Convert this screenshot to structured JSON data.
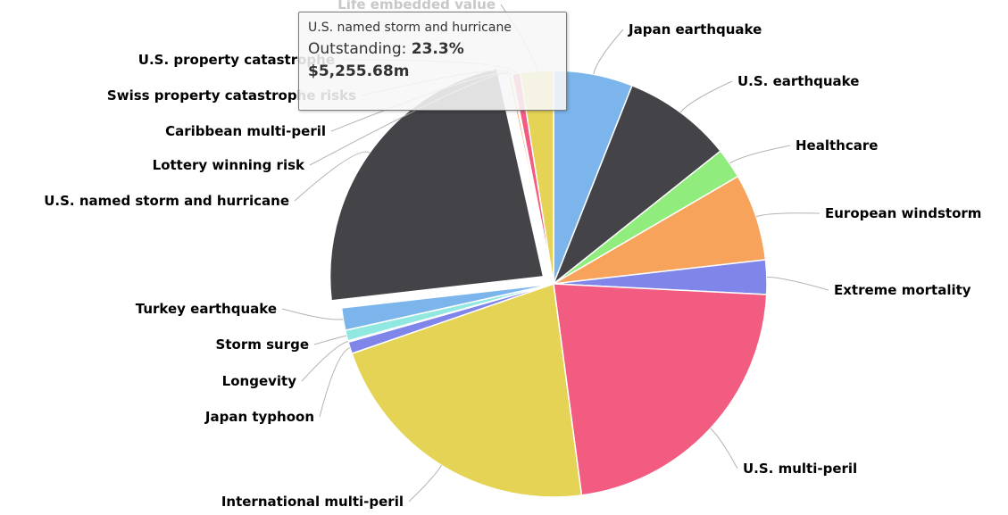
{
  "chart_data": {
    "type": "pie",
    "title": "",
    "slices": [
      {
        "name": "Japan earthquake",
        "value": 6.0,
        "color": "#7cb5ec"
      },
      {
        "name": "U.S. earthquake",
        "value": 8.3,
        "color": "#434348"
      },
      {
        "name": "Healthcare",
        "value": 2.3,
        "color": "#90ed7d"
      },
      {
        "name": "European windstorm",
        "value": 6.6,
        "color": "#f7a35c"
      },
      {
        "name": "Extreme mortality",
        "value": 2.6,
        "color": "#8085e9"
      },
      {
        "name": "U.S. multi-peril",
        "value": 22.1,
        "color": "#f15c80"
      },
      {
        "name": "International multi-peril",
        "value": 21.8,
        "color": "#e4d354"
      },
      {
        "name": "Japan typhoon",
        "value": 0.9,
        "color": "#8085e9"
      },
      {
        "name": "Longevity",
        "value": 0.1,
        "color": "#f7a35c"
      },
      {
        "name": "Storm surge",
        "value": 0.8,
        "color": "#91e8e1"
      },
      {
        "name": "Turkey earthquake",
        "value": 1.7,
        "color": "#7cb5ec"
      },
      {
        "name": "U.S. named storm and hurricane",
        "value": 23.3,
        "color": "#434348",
        "selected": true
      },
      {
        "name": "Lottery winning risk",
        "value": 0.1,
        "color": "#90ed7d"
      },
      {
        "name": "Caribbean multi-peril",
        "value": 0.2,
        "color": "#f7a35c"
      },
      {
        "name": "Swiss property catastrophe risks",
        "value": 0.1,
        "color": "#8085e9"
      },
      {
        "name": "U.S. property catastrophe",
        "value": 0.6,
        "color": "#f15c80"
      },
      {
        "name": "Life embedded value",
        "value": 2.5,
        "color": "#e4d354"
      }
    ],
    "labels_shown": [
      {
        "text": "Japan earthquake",
        "slice": 0,
        "side": "right"
      },
      {
        "text": "U.S. earthquake",
        "slice": 1,
        "side": "right"
      },
      {
        "text": "Healthcare",
        "slice": 2,
        "side": "right"
      },
      {
        "text": "European windstorm",
        "slice": 3,
        "side": "right"
      },
      {
        "text": "Extreme mortality",
        "slice": 4,
        "side": "right"
      },
      {
        "text": "U.S. multi-peril",
        "slice": 5,
        "side": "right"
      },
      {
        "text": "International multi-peril",
        "slice": 6,
        "side": "left"
      },
      {
        "text": "Japan typhoon",
        "slice": 7,
        "side": "left"
      },
      {
        "text": "Longevity",
        "slice": 8,
        "side": "left"
      },
      {
        "text": "Storm surge",
        "slice": 9,
        "side": "left"
      },
      {
        "text": "Turkey earthquake",
        "slice": 10,
        "side": "left"
      },
      {
        "text": "U.S. named storm and hurricane",
        "slice": 11,
        "side": "left"
      },
      {
        "text": "Lottery winning risk",
        "slice": 12,
        "side": "left"
      },
      {
        "text": "Caribbean multi-peril",
        "slice": 13,
        "side": "left"
      },
      {
        "text": "Swiss property catastrophe risks",
        "slice": 14,
        "side": "left"
      },
      {
        "text": "U.S. property catastrophe",
        "slice": 15,
        "side": "left"
      },
      {
        "text": "Life embedded value",
        "slice": 16,
        "side": "top"
      }
    ],
    "label_color": "#000000",
    "connector_color": "#b3b3b3"
  },
  "tooltip": {
    "series_name": "U.S. named storm and hurricane",
    "metric_label": "Outstanding:",
    "metric_value": "23.3%",
    "amount": "$5,255.68m"
  }
}
